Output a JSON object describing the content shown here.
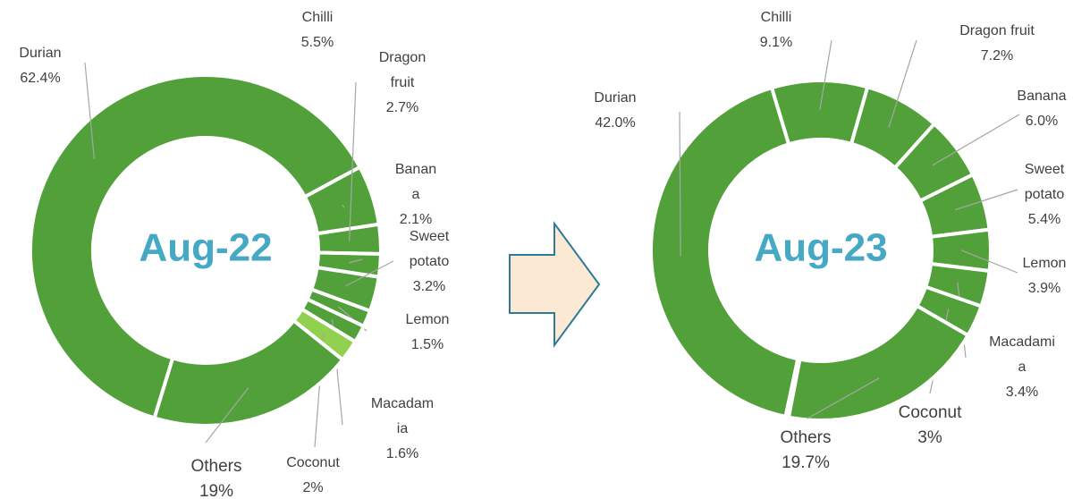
{
  "chart_data": [
    {
      "type": "pie",
      "center_label": "Aug-22",
      "color": "#52a03a",
      "categories": [
        "Durian",
        "Chilli",
        "Dragon fruit",
        "Banana",
        "Sweet potato",
        "Lemon",
        "Macadamia",
        "Coconut",
        "Others"
      ],
      "values": [
        62.4,
        5.5,
        2.7,
        2.1,
        3.2,
        1.5,
        1.6,
        2,
        19
      ],
      "value_labels": [
        "62.4%",
        "5.5%",
        "2.7%",
        "2.1%",
        "3.2%",
        "1.5%",
        "1.6%",
        "2%",
        "19%"
      ],
      "colors": [
        "#52a03a",
        "#52a03a",
        "#52a03a",
        "#52a03a",
        "#52a03a",
        "#52a03a",
        "#52a03a",
        "#92d050",
        "#52a03a"
      ]
    },
    {
      "type": "pie",
      "center_label": "Aug-23",
      "color": "#52a03a",
      "categories": [
        "Durian",
        "Chilli",
        "Dragon fruit",
        "Banana",
        "Sweet potato",
        "Lemon",
        "Macadamia",
        "Coconut",
        "Others"
      ],
      "values": [
        42.0,
        9.1,
        7.2,
        6.0,
        5.4,
        3.9,
        3.4,
        3,
        19.7
      ],
      "value_labels": [
        "42.0%",
        "9.1%",
        "7.2%",
        "6.0%",
        "5.4%",
        "3.9%",
        "3.4%",
        "3%",
        "19.7%"
      ],
      "colors": [
        "#52a03a",
        "#52a03a",
        "#52a03a",
        "#52a03a",
        "#52a03a",
        "#52a03a",
        "#52a03a",
        "#52a03a",
        "#52a03a"
      ]
    }
  ]
}
